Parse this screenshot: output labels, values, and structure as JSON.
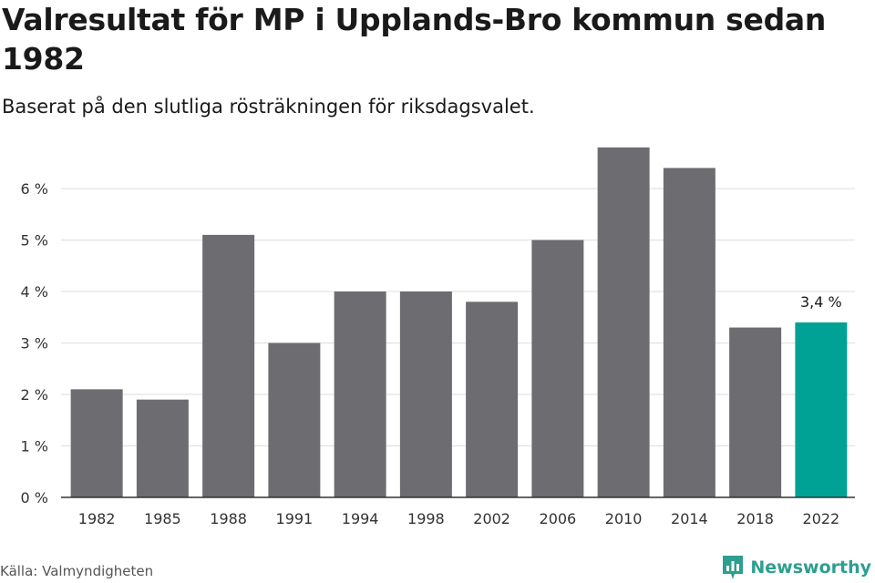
{
  "title": "Valresultat för MP i Upplands-Bro kommun sedan 1982",
  "subtitle": "Baserat på den slutliga rösträkningen för riksdagsvalet.",
  "source": "Källa: Valmyndigheten",
  "brand": {
    "name": "Newsworthy",
    "icon": "newsworthy-logo-icon"
  },
  "colors": {
    "bar": "#6d6c71",
    "highlight": "#00a295",
    "grid": "#dddddd",
    "axis": "#333333"
  },
  "chart_data": {
    "type": "bar",
    "title": "Valresultat för MP i Upplands-Bro kommun sedan 1982",
    "subtitle": "Baserat på den slutliga rösträkningen för riksdagsvalet.",
    "xlabel": "",
    "ylabel": "",
    "categories": [
      "1982",
      "1985",
      "1988",
      "1991",
      "1994",
      "1998",
      "2002",
      "2006",
      "2010",
      "2014",
      "2018",
      "2022"
    ],
    "values": [
      2.1,
      1.9,
      5.1,
      3.0,
      4.0,
      4.0,
      3.8,
      5.0,
      6.8,
      6.4,
      3.3,
      3.4
    ],
    "ylim": [
      0,
      7
    ],
    "yticks": [
      {
        "value": 0,
        "label": "0 %"
      },
      {
        "value": 1,
        "label": "1 %"
      },
      {
        "value": 2,
        "label": "2 %"
      },
      {
        "value": 3,
        "label": "3 %"
      },
      {
        "value": 4,
        "label": "4 %"
      },
      {
        "value": 5,
        "label": "5 %"
      },
      {
        "value": 6,
        "label": "6 %"
      }
    ],
    "highlight_index": 11,
    "data_labels": [
      {
        "index": 11,
        "text": "3,4 %"
      }
    ],
    "grid": true,
    "legend": "none"
  }
}
